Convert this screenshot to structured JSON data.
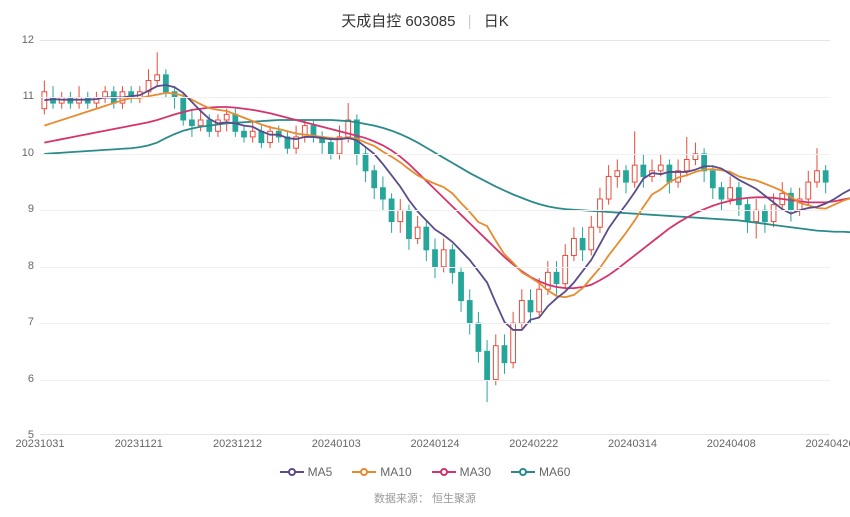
{
  "title": {
    "name": "天成自控",
    "code": "603085",
    "period": "日K"
  },
  "source": {
    "label": "数据来源：",
    "value": "恒生聚源"
  },
  "chart": {
    "type": "candlestick-with-ma",
    "ylim": [
      5,
      12
    ],
    "ytick_step": 1,
    "yticks": [
      5,
      6,
      7,
      8,
      9,
      10,
      11,
      12
    ],
    "xticks": [
      "20231031",
      "20231121",
      "20231212",
      "20240103",
      "20240124",
      "20240222",
      "20240314",
      "20240408",
      "20240426"
    ],
    "colors": {
      "up": "#e74c3c",
      "down": "#26a69a",
      "grid": "#f0f0f0",
      "text": "#666666",
      "ma5": "#5b4b8a",
      "ma10": "#e88b2f",
      "ma30": "#d6336c",
      "ma60": "#2b8a8a"
    },
    "legend": [
      {
        "label": "MA5",
        "color": "#5b4b8a"
      },
      {
        "label": "MA10",
        "color": "#e88b2f"
      },
      {
        "label": "MA30",
        "color": "#d6336c"
      },
      {
        "label": "MA60",
        "color": "#2b8a8a"
      }
    ],
    "candles": [
      {
        "o": 10.8,
        "c": 11.1,
        "h": 11.3,
        "l": 10.7
      },
      {
        "o": 11.0,
        "c": 10.9,
        "h": 11.2,
        "l": 10.8
      },
      {
        "o": 10.9,
        "c": 11.0,
        "h": 11.1,
        "l": 10.8
      },
      {
        "o": 11.0,
        "c": 10.9,
        "h": 11.1,
        "l": 10.8
      },
      {
        "o": 10.9,
        "c": 11.0,
        "h": 11.2,
        "l": 10.8
      },
      {
        "o": 11.0,
        "c": 10.9,
        "h": 11.1,
        "l": 10.8
      },
      {
        "o": 10.9,
        "c": 11.0,
        "h": 11.1,
        "l": 10.8
      },
      {
        "o": 11.0,
        "c": 11.1,
        "h": 11.2,
        "l": 10.9
      },
      {
        "o": 11.1,
        "c": 10.9,
        "h": 11.2,
        "l": 10.8
      },
      {
        "o": 10.9,
        "c": 11.1,
        "h": 11.2,
        "l": 10.8
      },
      {
        "o": 11.1,
        "c": 11.0,
        "h": 11.2,
        "l": 10.9
      },
      {
        "o": 11.0,
        "c": 11.1,
        "h": 11.2,
        "l": 10.9
      },
      {
        "o": 11.1,
        "c": 11.3,
        "h": 11.5,
        "l": 11.0
      },
      {
        "o": 11.3,
        "c": 11.4,
        "h": 11.8,
        "l": 11.2
      },
      {
        "o": 11.4,
        "c": 11.1,
        "h": 11.5,
        "l": 11.0
      },
      {
        "o": 11.1,
        "c": 11.0,
        "h": 11.2,
        "l": 10.8
      },
      {
        "o": 11.0,
        "c": 10.6,
        "h": 11.1,
        "l": 10.5
      },
      {
        "o": 10.6,
        "c": 10.5,
        "h": 10.8,
        "l": 10.3
      },
      {
        "o": 10.5,
        "c": 10.6,
        "h": 10.8,
        "l": 10.4
      },
      {
        "o": 10.6,
        "c": 10.4,
        "h": 10.7,
        "l": 10.3
      },
      {
        "o": 10.4,
        "c": 10.6,
        "h": 10.7,
        "l": 10.3
      },
      {
        "o": 10.6,
        "c": 10.7,
        "h": 10.8,
        "l": 10.4
      },
      {
        "o": 10.7,
        "c": 10.4,
        "h": 10.8,
        "l": 10.3
      },
      {
        "o": 10.4,
        "c": 10.3,
        "h": 10.5,
        "l": 10.2
      },
      {
        "o": 10.3,
        "c": 10.4,
        "h": 10.6,
        "l": 10.2
      },
      {
        "o": 10.4,
        "c": 10.2,
        "h": 10.5,
        "l": 10.1
      },
      {
        "o": 10.2,
        "c": 10.4,
        "h": 10.5,
        "l": 10.1
      },
      {
        "o": 10.4,
        "c": 10.3,
        "h": 10.5,
        "l": 10.2
      },
      {
        "o": 10.3,
        "c": 10.1,
        "h": 10.4,
        "l": 10.0
      },
      {
        "o": 10.1,
        "c": 10.3,
        "h": 10.5,
        "l": 10.0
      },
      {
        "o": 10.3,
        "c": 10.5,
        "h": 10.6,
        "l": 10.2
      },
      {
        "o": 10.5,
        "c": 10.3,
        "h": 10.6,
        "l": 10.2
      },
      {
        "o": 10.3,
        "c": 10.2,
        "h": 10.4,
        "l": 10.0
      },
      {
        "o": 10.2,
        "c": 10.0,
        "h": 10.3,
        "l": 9.9
      },
      {
        "o": 10.0,
        "c": 10.3,
        "h": 10.5,
        "l": 9.9
      },
      {
        "o": 10.3,
        "c": 10.6,
        "h": 10.9,
        "l": 10.2
      },
      {
        "o": 10.6,
        "c": 10.0,
        "h": 10.7,
        "l": 9.8
      },
      {
        "o": 10.0,
        "c": 9.7,
        "h": 10.1,
        "l": 9.5
      },
      {
        "o": 9.7,
        "c": 9.4,
        "h": 9.8,
        "l": 9.2
      },
      {
        "o": 9.4,
        "c": 9.2,
        "h": 9.6,
        "l": 9.0
      },
      {
        "o": 9.2,
        "c": 8.8,
        "h": 9.3,
        "l": 8.6
      },
      {
        "o": 8.8,
        "c": 9.0,
        "h": 9.2,
        "l": 8.6
      },
      {
        "o": 9.0,
        "c": 8.5,
        "h": 9.1,
        "l": 8.3
      },
      {
        "o": 8.5,
        "c": 8.7,
        "h": 8.9,
        "l": 8.4
      },
      {
        "o": 8.7,
        "c": 8.3,
        "h": 8.8,
        "l": 8.1
      },
      {
        "o": 8.3,
        "c": 8.0,
        "h": 8.5,
        "l": 7.8
      },
      {
        "o": 8.0,
        "c": 8.3,
        "h": 8.5,
        "l": 7.9
      },
      {
        "o": 8.3,
        "c": 7.9,
        "h": 8.4,
        "l": 7.7
      },
      {
        "o": 7.9,
        "c": 7.4,
        "h": 8.0,
        "l": 7.2
      },
      {
        "o": 7.4,
        "c": 7.0,
        "h": 7.6,
        "l": 6.8
      },
      {
        "o": 7.0,
        "c": 6.5,
        "h": 7.2,
        "l": 6.3
      },
      {
        "o": 6.5,
        "c": 6.0,
        "h": 6.7,
        "l": 5.6
      },
      {
        "o": 6.0,
        "c": 6.6,
        "h": 6.8,
        "l": 5.9
      },
      {
        "o": 6.6,
        "c": 6.3,
        "h": 6.8,
        "l": 6.1
      },
      {
        "o": 6.3,
        "c": 7.0,
        "h": 7.2,
        "l": 6.2
      },
      {
        "o": 7.0,
        "c": 7.4,
        "h": 7.6,
        "l": 6.9
      },
      {
        "o": 7.4,
        "c": 7.2,
        "h": 7.6,
        "l": 7.0
      },
      {
        "o": 7.2,
        "c": 7.6,
        "h": 7.8,
        "l": 7.1
      },
      {
        "o": 7.6,
        "c": 7.9,
        "h": 8.1,
        "l": 7.5
      },
      {
        "o": 7.9,
        "c": 7.7,
        "h": 8.1,
        "l": 7.5
      },
      {
        "o": 7.7,
        "c": 8.2,
        "h": 8.4,
        "l": 7.6
      },
      {
        "o": 8.2,
        "c": 8.5,
        "h": 8.7,
        "l": 8.1
      },
      {
        "o": 8.5,
        "c": 8.3,
        "h": 8.7,
        "l": 8.1
      },
      {
        "o": 8.3,
        "c": 8.7,
        "h": 8.9,
        "l": 8.2
      },
      {
        "o": 8.7,
        "c": 9.2,
        "h": 9.4,
        "l": 8.6
      },
      {
        "o": 9.2,
        "c": 9.6,
        "h": 9.8,
        "l": 9.1
      },
      {
        "o": 9.6,
        "c": 9.7,
        "h": 9.9,
        "l": 9.4
      },
      {
        "o": 9.7,
        "c": 9.5,
        "h": 9.8,
        "l": 9.3
      },
      {
        "o": 9.5,
        "c": 9.8,
        "h": 10.4,
        "l": 9.4
      },
      {
        "o": 9.8,
        "c": 9.6,
        "h": 10.0,
        "l": 9.4
      },
      {
        "o": 9.6,
        "c": 9.7,
        "h": 9.9,
        "l": 9.5
      },
      {
        "o": 9.7,
        "c": 9.8,
        "h": 10.0,
        "l": 9.6
      },
      {
        "o": 9.8,
        "c": 9.5,
        "h": 9.9,
        "l": 9.3
      },
      {
        "o": 9.5,
        "c": 9.7,
        "h": 9.9,
        "l": 9.4
      },
      {
        "o": 9.7,
        "c": 9.9,
        "h": 10.3,
        "l": 9.6
      },
      {
        "o": 9.9,
        "c": 10.0,
        "h": 10.2,
        "l": 9.8
      },
      {
        "o": 10.0,
        "c": 9.7,
        "h": 10.1,
        "l": 9.5
      },
      {
        "o": 9.7,
        "c": 9.4,
        "h": 9.8,
        "l": 9.2
      },
      {
        "o": 9.4,
        "c": 9.2,
        "h": 9.5,
        "l": 9.0
      },
      {
        "o": 9.2,
        "c": 9.4,
        "h": 9.6,
        "l": 9.1
      },
      {
        "o": 9.4,
        "c": 9.1,
        "h": 9.5,
        "l": 8.9
      },
      {
        "o": 9.1,
        "c": 8.8,
        "h": 9.2,
        "l": 8.6
      },
      {
        "o": 8.8,
        "c": 9.0,
        "h": 9.2,
        "l": 8.5
      },
      {
        "o": 9.0,
        "c": 8.8,
        "h": 9.1,
        "l": 8.6
      },
      {
        "o": 8.8,
        "c": 9.1,
        "h": 9.3,
        "l": 8.7
      },
      {
        "o": 9.1,
        "c": 9.3,
        "h": 9.5,
        "l": 9.0
      },
      {
        "o": 9.3,
        "c": 9.0,
        "h": 9.4,
        "l": 8.8
      },
      {
        "o": 9.0,
        "c": 9.2,
        "h": 9.4,
        "l": 8.9
      },
      {
        "o": 9.2,
        "c": 9.5,
        "h": 9.7,
        "l": 9.1
      },
      {
        "o": 9.5,
        "c": 9.7,
        "h": 10.1,
        "l": 9.4
      },
      {
        "o": 9.7,
        "c": 9.5,
        "h": 9.8,
        "l": 9.3
      }
    ],
    "ma5": [
      10.95,
      10.97,
      10.96,
      10.96,
      10.96,
      10.96,
      10.97,
      11.0,
      11.0,
      11.0,
      11.02,
      11.04,
      11.12,
      11.2,
      11.22,
      11.18,
      11.08,
      10.92,
      10.76,
      10.62,
      10.54,
      10.56,
      10.54,
      10.5,
      10.48,
      10.4,
      10.34,
      10.34,
      10.28,
      10.26,
      10.3,
      10.3,
      10.28,
      10.26,
      10.26,
      10.28,
      10.24,
      10.12,
      10.0,
      9.82,
      9.62,
      9.42,
      9.18,
      8.98,
      8.82,
      8.66,
      8.56,
      8.44,
      8.28,
      8.12,
      7.92,
      7.72,
      7.36,
      7.02,
      6.88,
      6.88,
      7.06,
      7.1,
      7.3,
      7.44,
      7.56,
      7.72,
      7.92,
      8.12,
      8.4,
      8.68,
      8.9,
      9.1,
      9.32,
      9.56,
      9.66,
      9.64,
      9.68,
      9.68,
      9.68,
      9.72,
      9.78,
      9.78,
      9.74,
      9.64,
      9.54,
      9.46,
      9.38,
      9.26,
      9.14,
      9.02,
      8.94,
      9.0,
      9.04,
      9.06,
      9.12,
      9.2,
      9.3,
      9.38,
      9.48
    ],
    "ma10": [
      10.5,
      10.55,
      10.6,
      10.65,
      10.7,
      10.75,
      10.8,
      10.85,
      10.9,
      10.95,
      10.99,
      10.99,
      11.02,
      11.05,
      11.08,
      11.07,
      11.03,
      10.96,
      10.88,
      10.81,
      10.78,
      10.76,
      10.7,
      10.64,
      10.58,
      10.52,
      10.47,
      10.44,
      10.4,
      10.36,
      10.34,
      10.32,
      10.3,
      10.28,
      10.27,
      10.29,
      10.27,
      10.2,
      10.14,
      10.04,
      9.95,
      9.85,
      9.73,
      9.62,
      9.54,
      9.47,
      9.41,
      9.3,
      9.13,
      8.97,
      8.79,
      8.72,
      8.46,
      8.22,
      8.07,
      7.9,
      7.81,
      7.71,
      7.58,
      7.48,
      7.46,
      7.5,
      7.62,
      7.8,
      7.98,
      8.2,
      8.4,
      8.6,
      8.82,
      9.06,
      9.28,
      9.37,
      9.5,
      9.58,
      9.62,
      9.68,
      9.72,
      9.73,
      9.71,
      9.68,
      9.6,
      9.56,
      9.53,
      9.47,
      9.41,
      9.34,
      9.24,
      9.13,
      9.09,
      9.04,
      9.03,
      9.1,
      9.17,
      9.22,
      9.3
    ],
    "ma30": [
      10.2,
      10.23,
      10.26,
      10.29,
      10.32,
      10.35,
      10.38,
      10.41,
      10.44,
      10.47,
      10.5,
      10.53,
      10.56,
      10.6,
      10.65,
      10.7,
      10.74,
      10.78,
      10.8,
      10.82,
      10.83,
      10.83,
      10.82,
      10.8,
      10.78,
      10.75,
      10.72,
      10.68,
      10.64,
      10.6,
      10.56,
      10.52,
      10.48,
      10.44,
      10.4,
      10.36,
      10.32,
      10.28,
      10.22,
      10.15,
      10.06,
      9.95,
      9.82,
      9.67,
      9.52,
      9.37,
      9.22,
      9.07,
      8.92,
      8.77,
      8.62,
      8.47,
      8.32,
      8.17,
      8.04,
      7.92,
      7.82,
      7.74,
      7.68,
      7.64,
      7.62,
      7.62,
      7.64,
      7.68,
      7.76,
      7.85,
      7.96,
      8.08,
      8.2,
      8.32,
      8.44,
      8.56,
      8.68,
      8.78,
      8.87,
      8.95,
      9.02,
      9.08,
      9.13,
      9.17,
      9.2,
      9.22,
      9.23,
      9.23,
      9.22,
      9.2,
      9.18,
      9.16,
      9.14,
      9.14,
      9.14,
      9.16,
      9.19,
      9.22,
      9.26
    ],
    "ma60": [
      10.0,
      10.01,
      10.02,
      10.03,
      10.04,
      10.05,
      10.06,
      10.07,
      10.08,
      10.09,
      10.1,
      10.12,
      10.15,
      10.2,
      10.28,
      10.35,
      10.41,
      10.45,
      10.48,
      10.5,
      10.52,
      10.54,
      10.55,
      10.56,
      10.57,
      10.58,
      10.59,
      10.6,
      10.6,
      10.6,
      10.6,
      10.6,
      10.6,
      10.6,
      10.59,
      10.58,
      10.56,
      10.53,
      10.5,
      10.46,
      10.41,
      10.35,
      10.28,
      10.2,
      10.11,
      10.02,
      9.93,
      9.84,
      9.75,
      9.66,
      9.58,
      9.5,
      9.42,
      9.35,
      9.28,
      9.22,
      9.16,
      9.11,
      9.07,
      9.04,
      9.02,
      9.01,
      9.0,
      8.99,
      8.98,
      8.97,
      8.96,
      8.95,
      8.94,
      8.93,
      8.92,
      8.91,
      8.9,
      8.89,
      8.88,
      8.87,
      8.86,
      8.85,
      8.84,
      8.83,
      8.82,
      8.8,
      8.78,
      8.76,
      8.74,
      8.72,
      8.7,
      8.68,
      8.66,
      8.64,
      8.63,
      8.62,
      8.62,
      8.61,
      8.6
    ]
  }
}
